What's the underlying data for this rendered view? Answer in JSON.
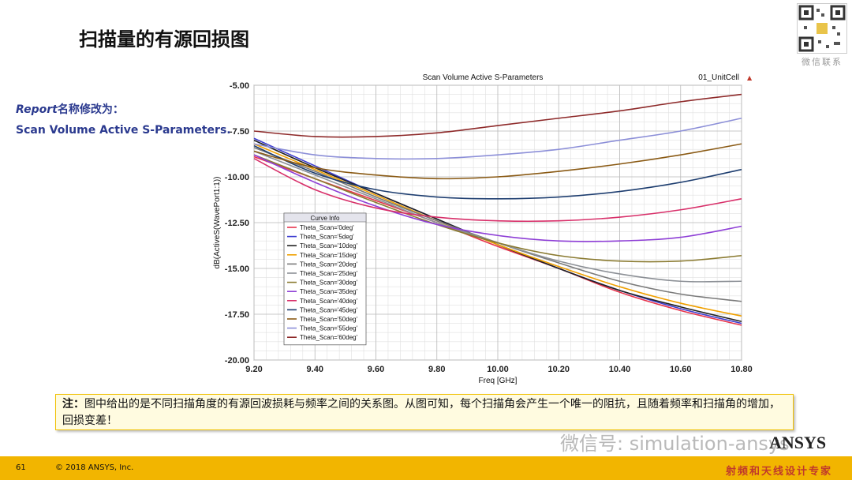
{
  "slide": {
    "title": "扫描量的有源回损图",
    "report_line1_italic": "Report",
    "report_line1_rest": "名称修改为：",
    "report_line2": "Scan Volume Active S-Parameters.",
    "qr_caption": "微信联系",
    "note_label": "注：",
    "note_text": "图中给出的是不同扫描角度的有源回波损耗与频率之间的关系图。从图可知，每个扫描角会产生一个唯一的阻抗，且随着频率和扫描角的增加，回损变差！",
    "wechat_watermark": "微信号: simulation-ansys",
    "ansys_logo": "ANSYS",
    "rf_tag": "射频和天线设计专家",
    "page_number": "61",
    "copyright": "© 2018 ANSYS, Inc."
  },
  "chart_data": {
    "type": "line",
    "title": "Scan Volume Active S-Parameters",
    "design_label": "01_UnitCell",
    "xlabel": "Freq [GHz]",
    "ylabel": "dB(ActiveS(WavePort1:1))",
    "xlim": [
      9.2,
      10.8
    ],
    "ylim": [
      -20.0,
      -5.0
    ],
    "xticks": [
      "9.20",
      "9.40",
      "9.60",
      "9.80",
      "10.00",
      "10.20",
      "10.40",
      "10.60",
      "10.80"
    ],
    "yticks": [
      "-5.00",
      "-7.50",
      "-10.00",
      "-12.50",
      "-15.00",
      "-17.50",
      "-20.00"
    ],
    "legend_title": "Curve Info",
    "legend_position": "bottom-left",
    "x": [
      9.2,
      9.4,
      9.6,
      9.8,
      10.0,
      10.2,
      10.4,
      10.6,
      10.8
    ],
    "series": [
      {
        "name": "Theta_Scan='0deg'",
        "color": "#e8344c",
        "values": [
          -8.9,
          -10.1,
          -11.3,
          -12.5,
          -13.8,
          -15.0,
          -16.3,
          -17.3,
          -18.1
        ]
      },
      {
        "name": "Theta_Scan='5deg'",
        "color": "#3c3cd0",
        "values": [
          -7.9,
          -9.4,
          -10.9,
          -12.3,
          -13.7,
          -15.0,
          -16.2,
          -17.2,
          -18.0
        ]
      },
      {
        "name": "Theta_Scan='10deg'",
        "color": "#222222",
        "values": [
          -8.0,
          -9.5,
          -10.9,
          -12.3,
          -13.7,
          -15.0,
          -16.2,
          -17.1,
          -17.9
        ]
      },
      {
        "name": "Theta_Scan='15deg'",
        "color": "#f0a000",
        "values": [
          -8.2,
          -9.6,
          -11.0,
          -12.4,
          -13.7,
          -14.9,
          -16.0,
          -16.9,
          -17.6
        ]
      },
      {
        "name": "Theta_Scan='20deg'",
        "color": "#7a7a7a",
        "values": [
          -8.4,
          -9.7,
          -11.1,
          -12.4,
          -13.6,
          -14.7,
          -15.7,
          -16.4,
          -16.8
        ]
      },
      {
        "name": "Theta_Scan='25deg'",
        "color": "#8c9096",
        "values": [
          -8.6,
          -9.9,
          -11.2,
          -12.5,
          -13.6,
          -14.6,
          -15.3,
          -15.7,
          -15.7
        ]
      },
      {
        "name": "Theta_Scan='30deg'",
        "color": "#8a7a30",
        "values": [
          -8.8,
          -10.1,
          -11.4,
          -12.6,
          -13.6,
          -14.3,
          -14.6,
          -14.6,
          -14.3
        ]
      },
      {
        "name": "Theta_Scan='35deg'",
        "color": "#8e3fd6",
        "values": [
          -8.8,
          -10.3,
          -11.6,
          -12.6,
          -13.2,
          -13.5,
          -13.5,
          -13.3,
          -12.7
        ]
      },
      {
        "name": "Theta_Scan='40deg'",
        "color": "#d8306a",
        "values": [
          -9.0,
          -10.7,
          -11.7,
          -12.2,
          -12.4,
          -12.4,
          -12.2,
          -11.8,
          -11.2
        ]
      },
      {
        "name": "Theta_Scan='45deg'",
        "color": "#1e3e70",
        "values": [
          -8.3,
          -9.8,
          -10.7,
          -11.1,
          -11.2,
          -11.1,
          -10.8,
          -10.3,
          -9.6
        ]
      },
      {
        "name": "Theta_Scan='50deg'",
        "color": "#8a5a14",
        "values": [
          -8.6,
          -9.5,
          -9.9,
          -10.1,
          -10.0,
          -9.7,
          -9.3,
          -8.8,
          -8.2
        ]
      },
      {
        "name": "Theta_Scan='55deg'",
        "color": "#8c8fd8",
        "values": [
          -8.2,
          -8.8,
          -9.0,
          -9.0,
          -8.8,
          -8.5,
          -8.0,
          -7.5,
          -6.8
        ]
      },
      {
        "name": "Theta_Scan='60deg'",
        "color": "#8e2a2a",
        "values": [
          -7.5,
          -7.8,
          -7.8,
          -7.6,
          -7.2,
          -6.8,
          -6.4,
          -5.9,
          -5.5
        ]
      }
    ]
  }
}
